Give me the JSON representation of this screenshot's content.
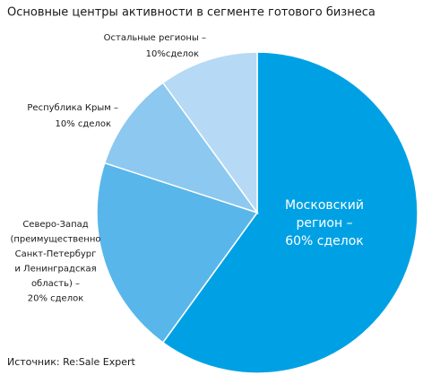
{
  "chart_data": {
    "type": "pie",
    "title": "Основные центры активности в сегменте готового бизнеса",
    "categories": [
      "Московский\nрегион –",
      "Северо-Запад\n(преимущественно\nСанкт-Петербург\nи Ленинградская\nобласть) –",
      "Республика Крым –",
      "Остальные регионы –"
    ],
    "values": [
      60,
      20,
      10,
      10
    ],
    "value_labels": [
      "60% сделок",
      "20% сделок",
      "10% сделок",
      "10%сделок"
    ],
    "colors": [
      "#00a1e4",
      "#58b6ea",
      "#8cc8ef",
      "#b6daf5"
    ],
    "source": "Источник: Re:Sale Expert"
  }
}
